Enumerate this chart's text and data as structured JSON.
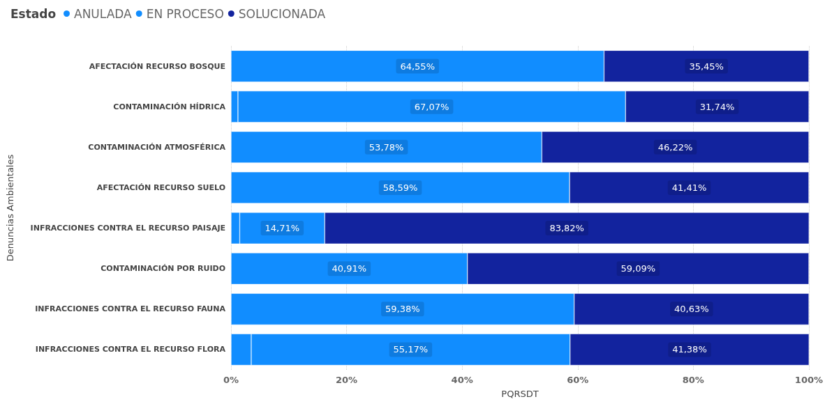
{
  "chart_data": {
    "type": "bar",
    "orientation": "horizontal",
    "stacked": true,
    "xlabel": "PQRSDT",
    "ylabel": "Denuncias Ambientales",
    "legend_title": "Estado",
    "legend": "top left",
    "grid": "x",
    "categories": [
      "AFECTACIÓN RECURSO BOSQUE",
      "CONTAMINACIÓN HÍDRICA",
      "CONTAMINACIÓN ATMOSFÉRICA",
      "AFECTACIÓN RECURSO SUELO",
      "INFRACCIONES CONTRA EL RECURSO PAISAJE",
      "CONTAMINACIÓN POR RUIDO",
      "INFRACCIONES CONTRA EL RECURSO FAUNA",
      "INFRACCIONES CONTRA EL RECURSO FLORA"
    ],
    "xlim": [
      0,
      100
    ],
    "xticks": [
      {
        "value": 0,
        "label": "0%"
      },
      {
        "value": 20,
        "label": "20%"
      },
      {
        "value": 40,
        "label": "40%"
      },
      {
        "value": 60,
        "label": "60%"
      },
      {
        "value": 80,
        "label": "80%"
      },
      {
        "value": 100,
        "label": "100%"
      }
    ],
    "series": [
      {
        "name": "ANULADA",
        "color": "#118dff",
        "values": [
          null,
          1.2,
          null,
          null,
          1.5,
          null,
          null,
          3.5
        ]
      },
      {
        "name": "EN PROCESO",
        "color": "#118dff",
        "values": [
          64.55,
          67.07,
          53.78,
          58.59,
          14.71,
          40.91,
          59.38,
          55.17
        ],
        "value_labels": [
          "64,55%",
          "67,07%",
          "53,78%",
          "58,59%",
          "14,71%",
          "40,91%",
          "59,38%",
          "55,17%"
        ]
      },
      {
        "name": "SOLUCIONADA",
        "color": "#12239e",
        "values": [
          35.45,
          31.74,
          46.22,
          41.41,
          83.82,
          59.09,
          40.63,
          41.38
        ],
        "value_labels": [
          "35,45%",
          "31,74%",
          "46,22%",
          "41,41%",
          "83,82%",
          "59,09%",
          "40,63%",
          "41,38%"
        ]
      }
    ]
  }
}
